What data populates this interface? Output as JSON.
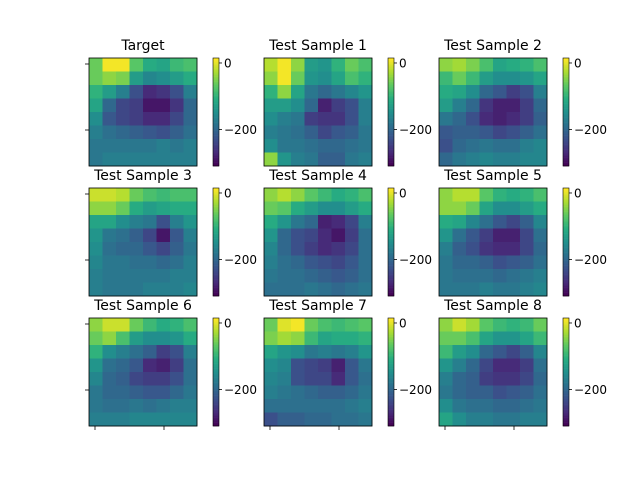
{
  "chart_data": {
    "type": "heatmap",
    "colormap": "viridis",
    "grid": false,
    "layout": "3x3 grid of heatmaps, each with its own colorbar",
    "colorbar": {
      "vmin": -310,
      "vmax": 15,
      "ticks": [
        0,
        -200
      ],
      "tick_labels": [
        "0",
        "−200"
      ]
    },
    "panels": [
      {
        "title": "Target",
        "values": [
          [
            -60,
            10,
            10,
            -70,
            -110,
            -120,
            -90,
            -80
          ],
          [
            -60,
            -40,
            -50,
            -130,
            -160,
            -150,
            -130,
            -110
          ],
          [
            -100,
            -130,
            -170,
            -230,
            -270,
            -260,
            -230,
            -170
          ],
          [
            -120,
            -200,
            -240,
            -250,
            -290,
            -290,
            -260,
            -200
          ],
          [
            -150,
            -220,
            -240,
            -250,
            -270,
            -270,
            -240,
            -200
          ],
          [
            -170,
            -190,
            -200,
            -210,
            -220,
            -230,
            -210,
            -190
          ],
          [
            -180,
            -180,
            -180,
            -180,
            -180,
            -170,
            -180,
            -170
          ],
          [
            -180,
            -170,
            -170,
            -170,
            -170,
            -170,
            -170,
            -170
          ]
        ]
      },
      {
        "title": "Test Sample 1",
        "values": [
          [
            -20,
            10,
            -40,
            -130,
            -140,
            -100,
            -60,
            -80
          ],
          [
            -40,
            10,
            -60,
            -140,
            -150,
            -120,
            -80,
            -100
          ],
          [
            -100,
            -40,
            -120,
            -180,
            -200,
            -180,
            -160,
            -140
          ],
          [
            -130,
            -130,
            -150,
            -200,
            -280,
            -250,
            -230,
            -170
          ],
          [
            -150,
            -170,
            -180,
            -250,
            -260,
            -260,
            -230,
            -170
          ],
          [
            -170,
            -180,
            -190,
            -210,
            -240,
            -220,
            -210,
            -180
          ],
          [
            -150,
            -180,
            -180,
            -190,
            -200,
            -200,
            -190,
            -180
          ],
          [
            -40,
            -140,
            -170,
            -180,
            -210,
            -210,
            -180,
            -170
          ]
        ]
      },
      {
        "title": "Test Sample 2",
        "values": [
          [
            -40,
            -30,
            -50,
            -80,
            -120,
            -110,
            -100,
            -80
          ],
          [
            -90,
            -60,
            -90,
            -130,
            -150,
            -150,
            -140,
            -120
          ],
          [
            -110,
            -120,
            -150,
            -200,
            -220,
            -250,
            -230,
            -170
          ],
          [
            -130,
            -170,
            -200,
            -260,
            -280,
            -280,
            -250,
            -200
          ],
          [
            -180,
            -200,
            -230,
            -270,
            -280,
            -270,
            -250,
            -210
          ],
          [
            -220,
            -210,
            -210,
            -220,
            -240,
            -230,
            -210,
            -190
          ],
          [
            -230,
            -200,
            -190,
            -180,
            -190,
            -190,
            -170,
            -160
          ],
          [
            -200,
            -180,
            -170,
            -160,
            -170,
            -170,
            -160,
            -160
          ]
        ]
      },
      {
        "title": "Test Sample 3",
        "values": [
          [
            -10,
            -10,
            -20,
            -60,
            -80,
            -90,
            -80,
            -80
          ],
          [
            -40,
            -40,
            -60,
            -110,
            -130,
            -120,
            -110,
            -110
          ],
          [
            -120,
            -120,
            -150,
            -170,
            -180,
            -230,
            -170,
            -140
          ],
          [
            -140,
            -180,
            -190,
            -210,
            -240,
            -290,
            -220,
            -170
          ],
          [
            -150,
            -190,
            -200,
            -200,
            -220,
            -240,
            -210,
            -180
          ],
          [
            -160,
            -180,
            -180,
            -190,
            -190,
            -200,
            -190,
            -170
          ],
          [
            -170,
            -180,
            -180,
            -180,
            -180,
            -180,
            -170,
            -170
          ],
          [
            -170,
            -180,
            -180,
            -180,
            -170,
            -170,
            -170,
            -160
          ]
        ]
      },
      {
        "title": "Test Sample 4",
        "values": [
          [
            -40,
            -20,
            -40,
            -70,
            -90,
            -110,
            -100,
            -80
          ],
          [
            -60,
            -70,
            -110,
            -130,
            -150,
            -150,
            -130,
            -110
          ],
          [
            -110,
            -140,
            -180,
            -200,
            -280,
            -270,
            -240,
            -170
          ],
          [
            -140,
            -200,
            -230,
            -240,
            -270,
            -290,
            -250,
            -190
          ],
          [
            -160,
            -200,
            -230,
            -250,
            -270,
            -260,
            -240,
            -190
          ],
          [
            -170,
            -190,
            -200,
            -220,
            -230,
            -240,
            -220,
            -190
          ],
          [
            -180,
            -190,
            -190,
            -200,
            -210,
            -220,
            -210,
            -190
          ],
          [
            -190,
            -190,
            -190,
            -180,
            -190,
            -200,
            -190,
            -180
          ]
        ]
      },
      {
        "title": "Test Sample 5",
        "values": [
          [
            -40,
            -20,
            -20,
            -70,
            -100,
            -110,
            -100,
            -80
          ],
          [
            -40,
            -40,
            -60,
            -120,
            -150,
            -150,
            -130,
            -110
          ],
          [
            -110,
            -120,
            -160,
            -190,
            -220,
            -240,
            -210,
            -160
          ],
          [
            -140,
            -190,
            -220,
            -250,
            -280,
            -280,
            -240,
            -190
          ],
          [
            -170,
            -210,
            -230,
            -260,
            -270,
            -270,
            -240,
            -200
          ],
          [
            -180,
            -200,
            -200,
            -210,
            -230,
            -220,
            -210,
            -190
          ],
          [
            -180,
            -190,
            -190,
            -190,
            -200,
            -190,
            -180,
            -170
          ],
          [
            -180,
            -180,
            -180,
            -170,
            -180,
            -180,
            -170,
            -160
          ]
        ]
      },
      {
        "title": "Test Sample 6",
        "values": [
          [
            -40,
            -10,
            -10,
            -60,
            -90,
            -110,
            -100,
            -80
          ],
          [
            -60,
            -40,
            -80,
            -130,
            -150,
            -150,
            -140,
            -110
          ],
          [
            -100,
            -150,
            -170,
            -190,
            -210,
            -250,
            -230,
            -170
          ],
          [
            -140,
            -190,
            -200,
            -220,
            -270,
            -280,
            -250,
            -190
          ],
          [
            -160,
            -200,
            -210,
            -240,
            -250,
            -250,
            -230,
            -190
          ],
          [
            -180,
            -200,
            -200,
            -210,
            -220,
            -220,
            -200,
            -180
          ],
          [
            -180,
            -190,
            -190,
            -180,
            -190,
            -180,
            -170,
            -170
          ],
          [
            -170,
            -170,
            -170,
            -160,
            -160,
            -160,
            -160,
            -160
          ]
        ]
      },
      {
        "title": "Test Sample 7",
        "values": [
          [
            -60,
            0,
            10,
            -60,
            -80,
            -90,
            -80,
            -70
          ],
          [
            -50,
            -30,
            -40,
            -90,
            -120,
            -110,
            -110,
            -100
          ],
          [
            -120,
            -140,
            -150,
            -180,
            -170,
            -180,
            -170,
            -140
          ],
          [
            -150,
            -160,
            -230,
            -240,
            -250,
            -280,
            -220,
            -180
          ],
          [
            -160,
            -170,
            -230,
            -240,
            -240,
            -270,
            -220,
            -190
          ],
          [
            -170,
            -180,
            -190,
            -200,
            -210,
            -210,
            -200,
            -180
          ],
          [
            -190,
            -190,
            -190,
            -190,
            -190,
            -190,
            -180,
            -170
          ],
          [
            -230,
            -210,
            -210,
            -200,
            -200,
            -190,
            -190,
            -180
          ]
        ]
      },
      {
        "title": "Test Sample 8",
        "values": [
          [
            -40,
            -10,
            -30,
            -70,
            -90,
            -100,
            -90,
            -60
          ],
          [
            -60,
            -60,
            -80,
            -120,
            -140,
            -140,
            -120,
            -90
          ],
          [
            -90,
            -130,
            -150,
            -200,
            -220,
            -240,
            -210,
            -160
          ],
          [
            -140,
            -170,
            -200,
            -240,
            -270,
            -270,
            -250,
            -190
          ],
          [
            -170,
            -200,
            -210,
            -250,
            -260,
            -260,
            -240,
            -200
          ],
          [
            -180,
            -200,
            -210,
            -210,
            -230,
            -220,
            -210,
            -190
          ],
          [
            -150,
            -180,
            -190,
            -190,
            -200,
            -200,
            -190,
            -180
          ],
          [
            -120,
            -150,
            -170,
            -170,
            -180,
            -180,
            -170,
            -170
          ]
        ]
      }
    ]
  }
}
